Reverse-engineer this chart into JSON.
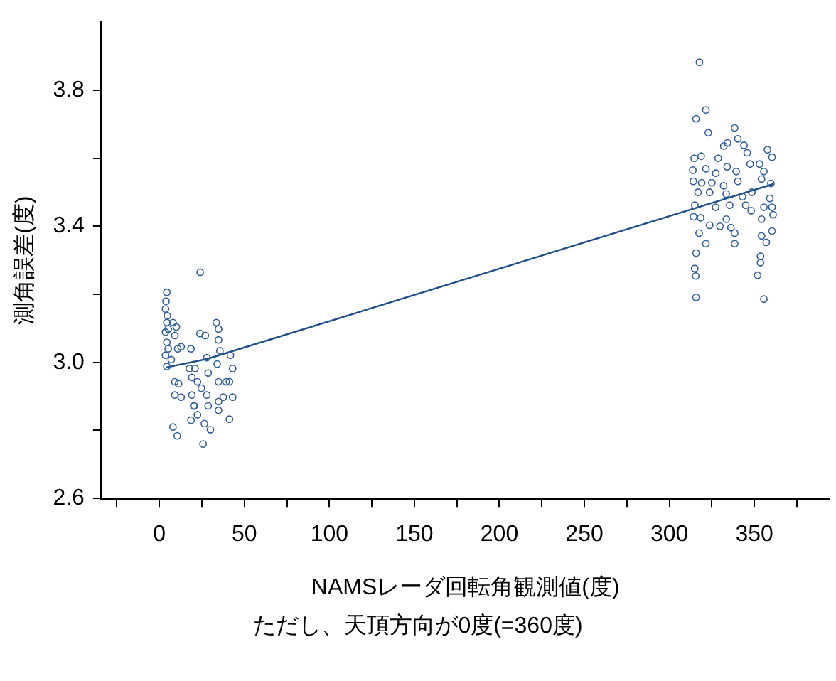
{
  "chart_data": {
    "type": "scatter",
    "xlabel": "NAMSレーダ回転角観測値(度)",
    "ylabel": "測角誤差(度)",
    "annotations": [
      "ただし、天頂方向が0度(=360度)"
    ],
    "xlim": [
      -34,
      394
    ],
    "xticks": [
      {
        "value": -25,
        "label": null
      },
      0,
      {
        "value": 25,
        "label": null
      },
      50,
      {
        "value": 75,
        "label": null
      },
      100,
      {
        "value": 125,
        "label": null
      },
      150,
      {
        "value": 175,
        "label": null
      },
      200,
      {
        "value": 225,
        "label": null
      },
      250,
      {
        "value": 275,
        "label": null
      },
      300,
      {
        "value": 325,
        "label": null
      },
      350,
      {
        "value": 375,
        "label": null
      }
    ],
    "ylim": [
      2.6,
      4.0
    ],
    "yticks": [
      2.6,
      {
        "value": 2.8,
        "label": null
      },
      {
        "value": 3,
        "label": "3.0"
      },
      {
        "value": 3.2,
        "label": null
      },
      3.4,
      {
        "value": 3.6,
        "label": null
      },
      3.8
    ],
    "grid": false,
    "legend": false,
    "series": [
      {
        "type": "scatter",
        "color": "#2e5d9a",
        "marker": "circle",
        "x": [
          4.4,
          3.9,
          3.6,
          4.7,
          4.4,
          5.2,
          3.6,
          8.0,
          9.1,
          10,
          4.4,
          5.2,
          3.6,
          7,
          4.4,
          10.8,
          12.8,
          9.1,
          11.3,
          9.1,
          12.8,
          8.0,
          10.5,
          19.1,
          17.7,
          18.6,
          19.1,
          18.6,
          24.0,
          21,
          20.2,
          22.4,
          25.7,
          26.5,
          27.9,
          27,
          23.9,
          24.7,
          22.4,
          28.7,
          27.9,
          28.7,
          33.5,
          34.8,
          34.8,
          35.6,
          34,
          34.8,
          34.8,
          34.8,
          37.6,
          41.2,
          41.8,
          43.1,
          41.2,
          43.1,
          39.3,
          30,
          20.5,
          321.5,
          315.7,
          322.9,
          338.4,
          340.3,
          332,
          334.2,
          343.9,
          345.8,
          314.6,
          318.7,
          328.7,
          321.5,
          313.8,
          327.3,
          334,
          339.3,
          347.5,
          353,
          357.7,
          360.4,
          355.6,
          354.2,
          359.7,
          314.1,
          319,
          325,
          331.9,
          340.3,
          316.9,
          323.7,
          333.4,
          343,
          348.5,
          359.1,
          315,
          327.2,
          335.5,
          344.9,
          355.6,
          360.4,
          314.2,
          318.4,
          333.5,
          348.1,
          354.2,
          361,
          323.7,
          329.8,
          336.2,
          317.5,
          338.4,
          321.5,
          338.4,
          357,
          354.2,
          360.4,
          315.7,
          353.6,
          353.6,
          314.9,
          315.5,
          351.9,
          315.7,
          355.6,
          317.7
        ],
        "values": [
          3.206,
          3.18,
          3.157,
          3.137,
          3.117,
          3.098,
          3.089,
          3.117,
          3.079,
          3.104,
          3.059,
          3.04,
          3.021,
          3.008,
          2.988,
          3.04,
          3.046,
          2.943,
          2.937,
          2.904,
          2.898,
          2.81,
          2.784,
          2.956,
          2.982,
          3.04,
          2.904,
          2.83,
          3.265,
          2.982,
          2.872,
          2.846,
          2.76,
          2.82,
          3.014,
          3.079,
          3.085,
          2.924,
          2.943,
          2.969,
          2.904,
          2.872,
          3.117,
          3.098,
          3.066,
          3.034,
          2.995,
          2.943,
          2.885,
          2.859,
          2.898,
          2.833,
          3.021,
          2.982,
          2.943,
          2.898,
          2.943,
          2.802,
          2.872,
          3.742,
          3.716,
          3.675,
          3.689,
          3.657,
          3.636,
          3.645,
          3.638,
          3.616,
          3.6,
          3.606,
          3.6,
          3.569,
          3.565,
          3.556,
          3.575,
          3.561,
          3.583,
          3.583,
          3.625,
          3.603,
          3.561,
          3.539,
          3.526,
          3.532,
          3.528,
          3.528,
          3.519,
          3.532,
          3.5,
          3.5,
          3.495,
          3.487,
          3.5,
          3.482,
          3.462,
          3.456,
          3.462,
          3.462,
          3.456,
          3.456,
          3.428,
          3.425,
          3.421,
          3.446,
          3.421,
          3.434,
          3.403,
          3.4,
          3.396,
          3.38,
          3.38,
          3.349,
          3.349,
          3.353,
          3.372,
          3.386,
          3.321,
          3.312,
          3.293,
          3.276,
          3.254,
          3.256,
          3.191,
          3.186,
          3.882
        ]
      },
      {
        "type": "line",
        "color": "#1f4e8f",
        "marker": "none",
        "x": [
          4,
          28,
          361
        ],
        "values": [
          2.985,
          3.01,
          3.524
        ]
      }
    ]
  }
}
